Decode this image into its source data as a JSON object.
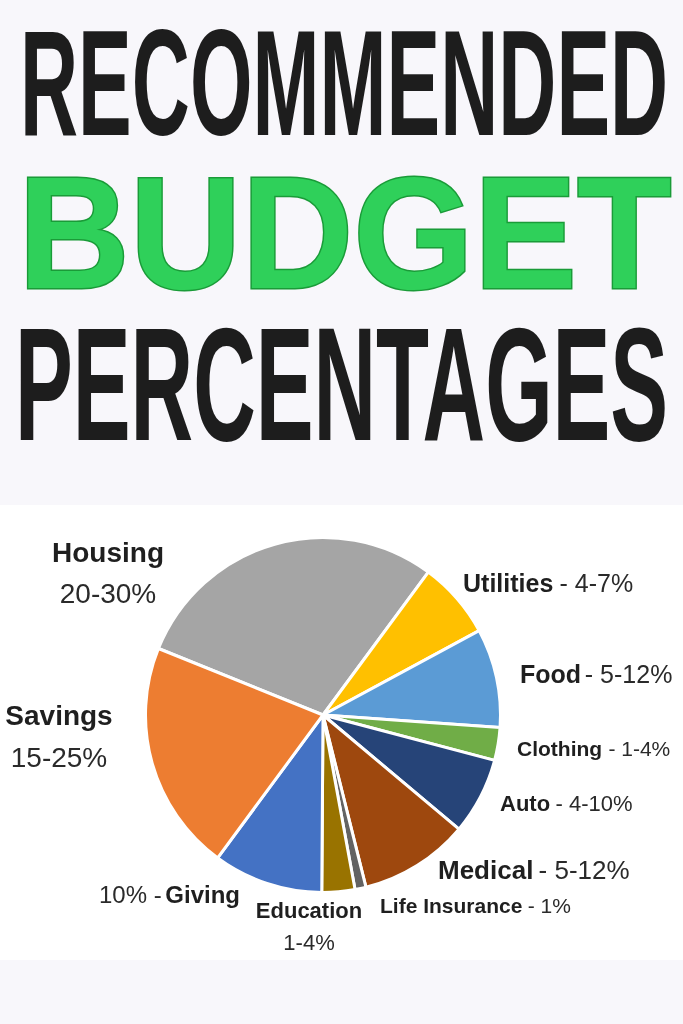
{
  "chart_data": {
    "type": "pie",
    "title": "RECOMMENDED BUDGET PERCENTAGES",
    "categories": [
      "Housing",
      "Utilities",
      "Food",
      "Clothing",
      "Auto",
      "Medical",
      "Life Insurance",
      "Education",
      "Giving",
      "Savings"
    ],
    "values": [
      29,
      7,
      9,
      3,
      7,
      10,
      1,
      3,
      10,
      21
    ],
    "colors": [
      "#a5a5a5",
      "#ffc000",
      "#5b9bd5",
      "#70ad47",
      "#264478",
      "#9e480e",
      "#636363",
      "#997300",
      "#4472c4",
      "#ed7d31"
    ],
    "annotations": [
      "20-30%",
      "- 4-7%",
      "- 5-12%",
      "- 1-4%",
      "- 4-10%",
      "- 5-12%",
      "- 1%",
      "1-4%",
      "10% -",
      "15-25%"
    ]
  }
}
